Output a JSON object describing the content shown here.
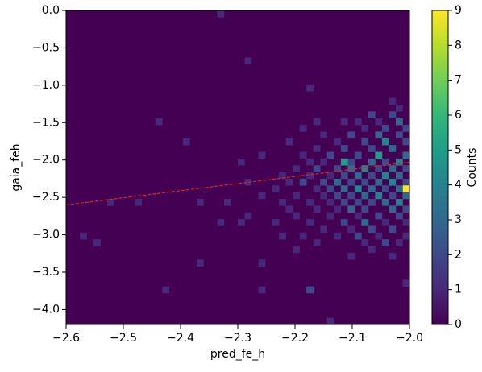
{
  "chart_data": {
    "type": "hist2d",
    "xlabel": "pred_fe_h",
    "ylabel": "gaia_feh",
    "xlim": [
      -2.6,
      -2.0
    ],
    "ylim": [
      -4.2,
      0.0
    ],
    "xticks": [
      {
        "value": -2.6,
        "label": "−2.6"
      },
      {
        "value": -2.5,
        "label": "−2.5"
      },
      {
        "value": -2.4,
        "label": "−2.4"
      },
      {
        "value": -2.3,
        "label": "−2.3"
      },
      {
        "value": -2.2,
        "label": "−2.2"
      },
      {
        "value": -2.1,
        "label": "−2.1"
      },
      {
        "value": -2.0,
        "label": "−2.0"
      }
    ],
    "yticks": [
      {
        "value": 0.0,
        "label": "0.0"
      },
      {
        "value": -0.5,
        "label": "−0.5"
      },
      {
        "value": -1.0,
        "label": "−1.0"
      },
      {
        "value": -1.5,
        "label": "−1.5"
      },
      {
        "value": -2.0,
        "label": "−2.0"
      },
      {
        "value": -2.5,
        "label": "−2.5"
      },
      {
        "value": -3.0,
        "label": "−3.0"
      },
      {
        "value": -3.5,
        "label": "−3.5"
      },
      {
        "value": -4.0,
        "label": "−4.0"
      }
    ],
    "colormap": "viridis",
    "colorbar_label": "Counts",
    "clim": [
      0,
      9
    ],
    "cticks": [
      0,
      1,
      2,
      3,
      4,
      5,
      6,
      7,
      8,
      9
    ],
    "bin_size": [
      0.012,
      0.09
    ],
    "cells": [
      [
        -2.012,
        -1.62,
        2
      ],
      [
        -2.012,
        -1.8,
        2
      ],
      [
        -2.012,
        -1.98,
        3
      ],
      [
        -2.012,
        -2.16,
        2
      ],
      [
        -2.012,
        -2.34,
        2
      ],
      [
        -2.012,
        -2.43,
        9
      ],
      [
        -2.012,
        -2.52,
        3
      ],
      [
        -2.012,
        -2.7,
        2
      ],
      [
        -2.012,
        -2.88,
        1
      ],
      [
        -2.012,
        -3.06,
        1
      ],
      [
        -2.012,
        -3.69,
        1
      ],
      [
        -2.024,
        -1.35,
        1
      ],
      [
        -2.024,
        -1.53,
        3
      ],
      [
        -2.024,
        -1.71,
        2
      ],
      [
        -2.024,
        -2.07,
        4
      ],
      [
        -2.024,
        -2.25,
        3
      ],
      [
        -2.024,
        -2.43,
        3
      ],
      [
        -2.024,
        -2.61,
        4
      ],
      [
        -2.024,
        -2.79,
        2
      ],
      [
        -2.024,
        -3.15,
        1
      ],
      [
        -2.036,
        -1.26,
        1
      ],
      [
        -2.036,
        -1.44,
        2
      ],
      [
        -2.036,
        -1.89,
        3
      ],
      [
        -2.036,
        -2.16,
        3
      ],
      [
        -2.036,
        -2.34,
        4
      ],
      [
        -2.036,
        -2.52,
        2
      ],
      [
        -2.036,
        -2.7,
        3
      ],
      [
        -2.036,
        -2.97,
        2
      ],
      [
        -2.036,
        -3.33,
        1
      ],
      [
        -2.048,
        -1.62,
        2
      ],
      [
        -2.048,
        -1.8,
        4
      ],
      [
        -2.048,
        -2.07,
        2
      ],
      [
        -2.048,
        -2.25,
        4
      ],
      [
        -2.048,
        -2.43,
        2
      ],
      [
        -2.048,
        -2.61,
        3
      ],
      [
        -2.048,
        -2.88,
        1
      ],
      [
        -2.048,
        -3.15,
        2
      ],
      [
        -2.06,
        -1.53,
        1
      ],
      [
        -2.06,
        -1.71,
        3
      ],
      [
        -2.06,
        -1.98,
        5
      ],
      [
        -2.06,
        -2.16,
        2
      ],
      [
        -2.06,
        -2.34,
        3
      ],
      [
        -2.06,
        -2.52,
        4
      ],
      [
        -2.06,
        -2.79,
        2
      ],
      [
        -2.06,
        -3.06,
        1
      ],
      [
        -2.072,
        -1.44,
        2
      ],
      [
        -2.072,
        -1.89,
        2
      ],
      [
        -2.072,
        -2.07,
        3
      ],
      [
        -2.072,
        -2.25,
        2
      ],
      [
        -2.072,
        -2.43,
        3
      ],
      [
        -2.072,
        -2.61,
        2
      ],
      [
        -2.072,
        -2.97,
        2
      ],
      [
        -2.072,
        -3.24,
        1
      ],
      [
        -2.084,
        -1.62,
        1
      ],
      [
        -2.084,
        -1.8,
        2
      ],
      [
        -2.084,
        -2.16,
        4
      ],
      [
        -2.084,
        -2.34,
        2
      ],
      [
        -2.084,
        -2.52,
        3
      ],
      [
        -2.084,
        -2.7,
        2
      ],
      [
        -2.084,
        -2.88,
        3
      ],
      [
        -2.084,
        -3.15,
        1
      ],
      [
        -2.096,
        -1.53,
        1
      ],
      [
        -2.096,
        -1.98,
        2
      ],
      [
        -2.096,
        -2.25,
        3
      ],
      [
        -2.096,
        -2.43,
        4
      ],
      [
        -2.096,
        -2.61,
        2
      ],
      [
        -2.096,
        -2.79,
        1
      ],
      [
        -2.096,
        -3.06,
        2
      ],
      [
        -2.108,
        -1.71,
        2
      ],
      [
        -2.108,
        -2.07,
        2
      ],
      [
        -2.108,
        -2.16,
        3
      ],
      [
        -2.108,
        -2.34,
        2
      ],
      [
        -2.108,
        -2.52,
        2
      ],
      [
        -2.108,
        -2.7,
        3
      ],
      [
        -2.108,
        -2.97,
        1
      ],
      [
        -2.108,
        -3.33,
        1
      ],
      [
        -2.12,
        -1.53,
        1
      ],
      [
        -2.12,
        -1.89,
        2
      ],
      [
        -2.12,
        -2.07,
        5
      ],
      [
        -2.12,
        -2.25,
        2
      ],
      [
        -2.12,
        -2.43,
        3
      ],
      [
        -2.12,
        -2.61,
        2
      ],
      [
        -2.12,
        -2.88,
        2
      ],
      [
        -2.132,
        -1.8,
        1
      ],
      [
        -2.132,
        -2.16,
        2
      ],
      [
        -2.132,
        -2.34,
        3
      ],
      [
        -2.132,
        -2.52,
        2
      ],
      [
        -2.132,
        -2.7,
        1
      ],
      [
        -2.132,
        -3.06,
        1
      ],
      [
        -2.144,
        -1.98,
        2
      ],
      [
        -2.144,
        -2.25,
        1
      ],
      [
        -2.144,
        -2.43,
        2
      ],
      [
        -2.144,
        -2.61,
        1
      ],
      [
        -2.144,
        -2.79,
        1
      ],
      [
        -2.144,
        -4.2,
        1
      ],
      [
        -2.156,
        -1.71,
        1
      ],
      [
        -2.156,
        -2.07,
        1
      ],
      [
        -2.156,
        -2.34,
        2
      ],
      [
        -2.156,
        -2.52,
        1
      ],
      [
        -2.156,
        -2.97,
        1
      ],
      [
        -2.168,
        -1.53,
        1
      ],
      [
        -2.168,
        -1.89,
        1
      ],
      [
        -2.168,
        -2.16,
        2
      ],
      [
        -2.168,
        -2.43,
        1
      ],
      [
        -2.168,
        -2.7,
        1
      ],
      [
        -2.168,
        -3.15,
        1
      ],
      [
        -2.18,
        -1.08,
        1
      ],
      [
        -2.18,
        -2.07,
        1
      ],
      [
        -2.18,
        -2.25,
        1
      ],
      [
        -2.18,
        -2.61,
        1
      ],
      [
        -2.18,
        -2.88,
        1
      ],
      [
        -2.18,
        -3.78,
        2
      ],
      [
        -2.192,
        -1.62,
        1
      ],
      [
        -2.192,
        -1.98,
        1
      ],
      [
        -2.192,
        -2.34,
        2
      ],
      [
        -2.192,
        -3.06,
        1
      ],
      [
        -2.204,
        -2.16,
        1
      ],
      [
        -2.204,
        -2.52,
        1
      ],
      [
        -2.204,
        -2.79,
        1
      ],
      [
        -2.204,
        -3.24,
        1
      ],
      [
        -2.216,
        -1.8,
        1
      ],
      [
        -2.216,
        -2.34,
        1
      ],
      [
        -2.216,
        -2.7,
        1
      ],
      [
        -2.228,
        -2.25,
        1
      ],
      [
        -2.228,
        -2.61,
        1
      ],
      [
        -2.228,
        -3.06,
        1
      ],
      [
        -2.24,
        -2.43,
        1
      ],
      [
        -2.24,
        -2.88,
        1
      ],
      [
        -2.264,
        -1.98,
        1
      ],
      [
        -2.264,
        -2.52,
        1
      ],
      [
        -2.264,
        -3.42,
        1
      ],
      [
        -2.264,
        -3.78,
        1
      ],
      [
        -2.288,
        -0.72,
        1
      ],
      [
        -2.288,
        -2.34,
        1
      ],
      [
        -2.288,
        -2.79,
        1
      ],
      [
        -2.3,
        -2.07,
        1
      ],
      [
        -2.3,
        -2.88,
        1
      ],
      [
        -2.324,
        -2.61,
        1
      ],
      [
        -2.336,
        -0.09,
        1
      ],
      [
        -2.336,
        -2.88,
        1
      ],
      [
        -2.372,
        -2.61,
        1
      ],
      [
        -2.372,
        -3.42,
        1
      ],
      [
        -2.396,
        -1.8,
        1
      ],
      [
        -2.432,
        -3.78,
        1
      ],
      [
        -2.444,
        -1.53,
        1
      ],
      [
        -2.48,
        -2.61,
        1
      ],
      [
        -2.528,
        -2.61,
        1
      ],
      [
        -2.552,
        -3.15,
        1
      ],
      [
        -2.576,
        -3.06,
        1
      ]
    ],
    "fit_line": {
      "x": [
        -2.6,
        -2.0
      ],
      "y": [
        -2.6,
        -2.03
      ],
      "color": "#d62728",
      "dashed": true
    }
  }
}
